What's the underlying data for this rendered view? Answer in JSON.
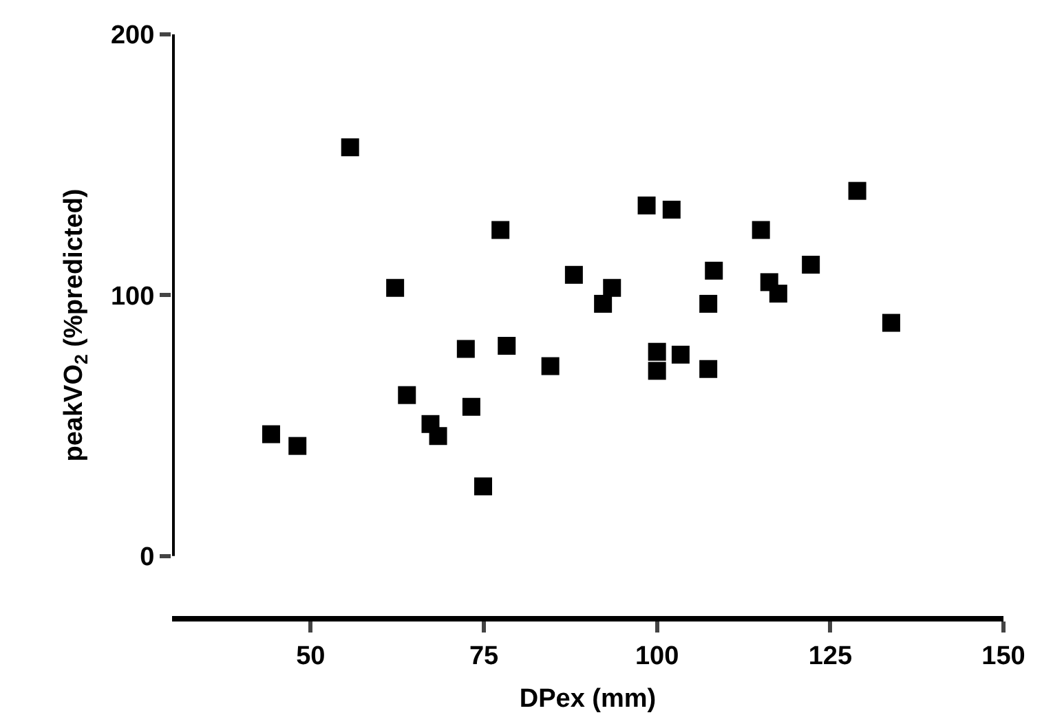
{
  "chart_data": {
    "type": "scatter",
    "xlabel": "DPex (mm)",
    "ylabel": "peakVO$_{2}$ (%predicted)",
    "marker": "square",
    "legend": false,
    "xlim": [
      30,
      150
    ],
    "xticks": [
      50,
      75,
      100,
      125,
      150
    ],
    "ylim": [
      -23,
      200
    ],
    "yticks": [
      0,
      100,
      200
    ],
    "series": [
      {
        "color": "#000000",
        "x": [
          55.7,
          77.4,
          62.2,
          88,
          93.5,
          92.2,
          72.4,
          78.3,
          84.6,
          63.9,
          67.3,
          68.4,
          73.2,
          44.3,
          48.1,
          74.9,
          98.5,
          102.1,
          128.9,
          115,
          122.2,
          108.2,
          116.2,
          117.5,
          107.4,
          133.8,
          100,
          100,
          103.4,
          107.4
        ],
        "values": [
          156.7,
          125,
          102.8,
          107.8,
          102.8,
          96.7,
          79.4,
          80.6,
          72.8,
          61.7,
          50.6,
          46,
          57.2,
          46.7,
          42.2,
          26.7,
          134.4,
          132.8,
          140,
          125,
          111.7,
          109.4,
          105,
          100.6,
          96.7,
          89.4,
          78.3,
          71,
          77.2,
          71.7
        ]
      }
    ]
  }
}
